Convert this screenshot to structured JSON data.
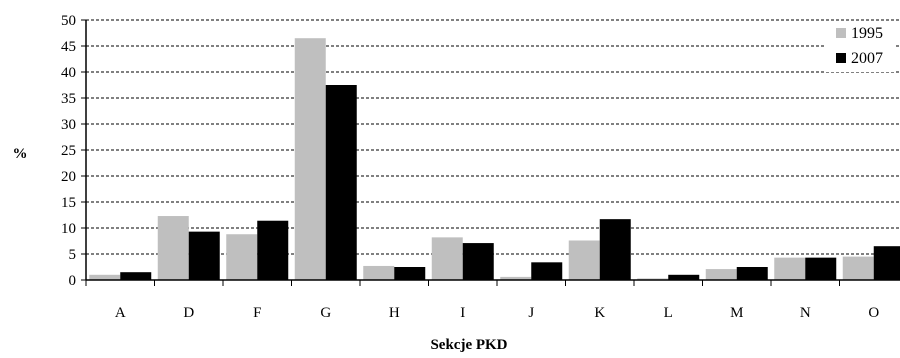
{
  "chart_data": {
    "type": "bar",
    "title": "",
    "xlabel": "Sekcje PKD",
    "ylabel": "%",
    "ylim": [
      0,
      50
    ],
    "yticks": [
      "0",
      "5",
      "10",
      "15",
      "20",
      "25",
      "30",
      "35",
      "40",
      "45",
      "50"
    ],
    "grid": "horizontal dashed",
    "legend_position": "top-right",
    "categories": [
      "A",
      "D",
      "F",
      "G",
      "H",
      "I",
      "J",
      "K",
      "L",
      "M",
      "N",
      "O"
    ],
    "series": [
      {
        "name": "1995",
        "color": "#bfbfbf",
        "values": [
          1.0,
          12.3,
          8.8,
          46.5,
          2.7,
          8.2,
          0.6,
          7.6,
          0.3,
          2.1,
          4.3,
          4.5
        ]
      },
      {
        "name": "2007",
        "color": "#000000",
        "values": [
          1.5,
          9.3,
          11.4,
          37.5,
          2.5,
          7.1,
          3.4,
          11.7,
          1.0,
          2.5,
          4.3,
          6.5
        ]
      }
    ]
  }
}
